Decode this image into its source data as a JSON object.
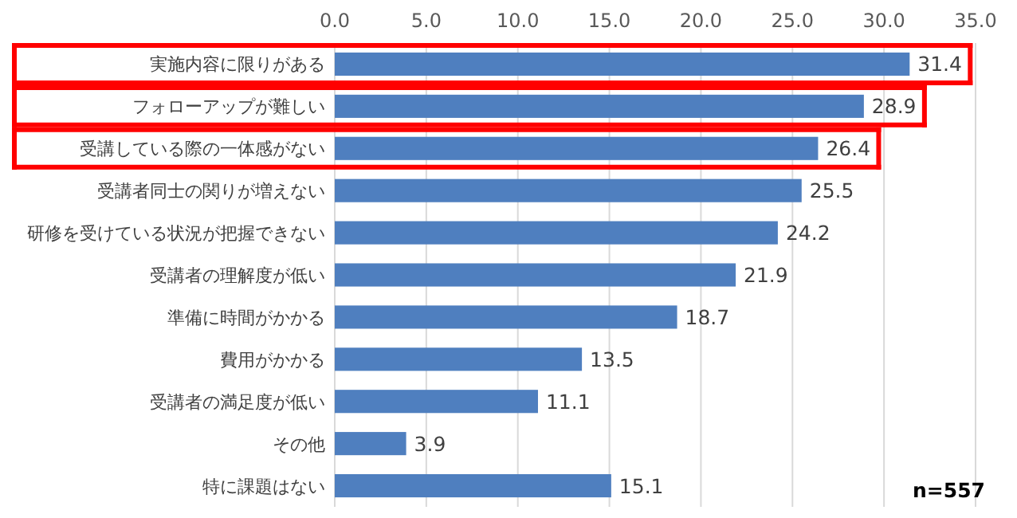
{
  "chart_data": {
    "type": "bar",
    "orientation": "horizontal",
    "categories": [
      "実施内容に限りがある",
      "フォローアップが難しい",
      "受講している際の一体感がない",
      "受講者同士の関りが増えない",
      "研修を受けている状況が把握できない",
      "受講者の理解度が低い",
      "準備に時間がかかる",
      "費用がかかる",
      "受講者の満足度が低い",
      "その他",
      "特に課題はない"
    ],
    "values": [
      31.4,
      28.9,
      26.4,
      25.5,
      24.2,
      21.9,
      18.7,
      13.5,
      11.1,
      3.9,
      15.1
    ],
    "color": "#4f7fbf",
    "xlim": [
      0,
      35
    ],
    "xticks": [
      {
        "value": 0,
        "label": "0.0"
      },
      {
        "value": 5,
        "label": "5.0"
      },
      {
        "value": 10,
        "label": "10.0"
      },
      {
        "value": 15,
        "label": "15.0"
      },
      {
        "value": 20,
        "label": "20.0"
      },
      {
        "value": 25,
        "label": "25.0"
      },
      {
        "value": 30,
        "label": "30.0"
      },
      {
        "value": 35,
        "label": "35.0"
      }
    ],
    "grid": "x",
    "data_labels": true,
    "annotations": [
      "n=557"
    ]
  }
}
